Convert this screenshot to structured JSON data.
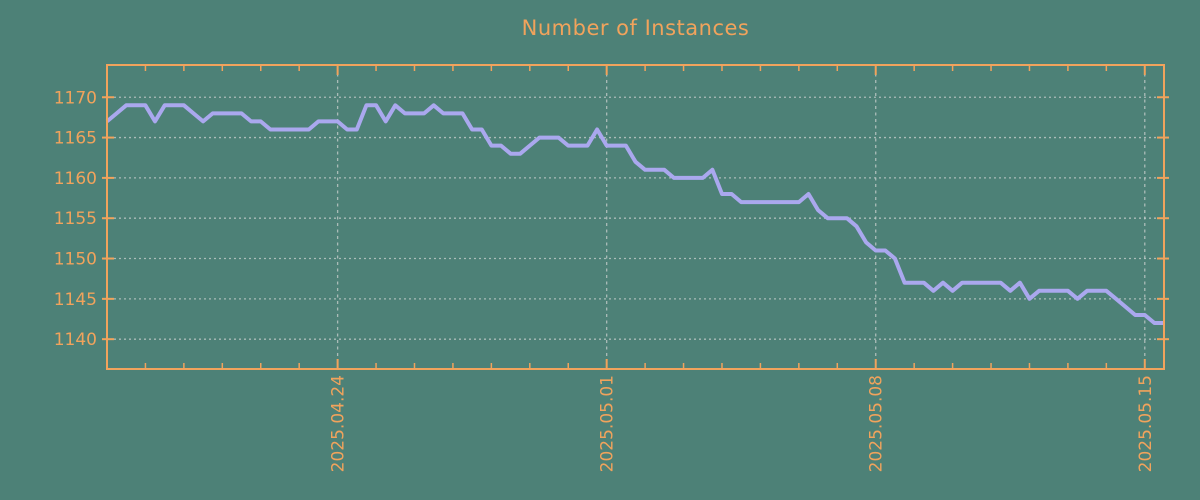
{
  "title": "Number of Instances",
  "colors": {
    "background": "#4d8177",
    "axis": "#f1a35c",
    "tick_label": "#f1a35c",
    "title": "#f1a35c",
    "line": "#aaa8ee",
    "grid": "#c9d0ce"
  },
  "chart_data": {
    "type": "line",
    "title": "Number of Instances",
    "xlabel": "",
    "ylabel": "",
    "legend": null,
    "grid": true,
    "x_tick_labels": [
      "2025.04.24",
      "2025.05.01",
      "2025.05.08",
      "2025.05.15"
    ],
    "x_tick_positions_days": [
      6,
      13,
      20,
      27
    ],
    "x_minor_tick_every_days": 1,
    "x_range_days": [
      0,
      27.5
    ],
    "x_start": "2025-04-18",
    "sample_interval_hours": 6,
    "y_ticks": [
      1140,
      1145,
      1150,
      1155,
      1160,
      1165,
      1170
    ],
    "ylim": [
      1136.3,
      1174.0
    ],
    "values": [
      1167,
      1168,
      1169,
      1169,
      1169,
      1167,
      1169,
      1169,
      1169,
      1168,
      1167,
      1168,
      1168,
      1168,
      1168,
      1167,
      1167,
      1166,
      1166,
      1166,
      1166,
      1166,
      1167,
      1167,
      1167,
      1166,
      1166,
      1169,
      1169,
      1167,
      1169,
      1168,
      1168,
      1168,
      1169,
      1168,
      1168,
      1168,
      1166,
      1166,
      1164,
      1164,
      1163,
      1163,
      1164,
      1165,
      1165,
      1165,
      1164,
      1164,
      1164,
      1166,
      1164,
      1164,
      1164,
      1162,
      1161,
      1161,
      1161,
      1160,
      1160,
      1160,
      1160,
      1161,
      1158,
      1158,
      1157,
      1157,
      1157,
      1157,
      1157,
      1157,
      1157,
      1158,
      1156,
      1155,
      1155,
      1155,
      1154,
      1152,
      1151,
      1151,
      1150,
      1147,
      1147,
      1147,
      1146,
      1147,
      1146,
      1147,
      1147,
      1147,
      1147,
      1147,
      1146,
      1147,
      1145,
      1146,
      1146,
      1146,
      1146,
      1145,
      1146,
      1146,
      1146,
      1145,
      1144,
      1143,
      1143,
      1142,
      1142
    ]
  }
}
